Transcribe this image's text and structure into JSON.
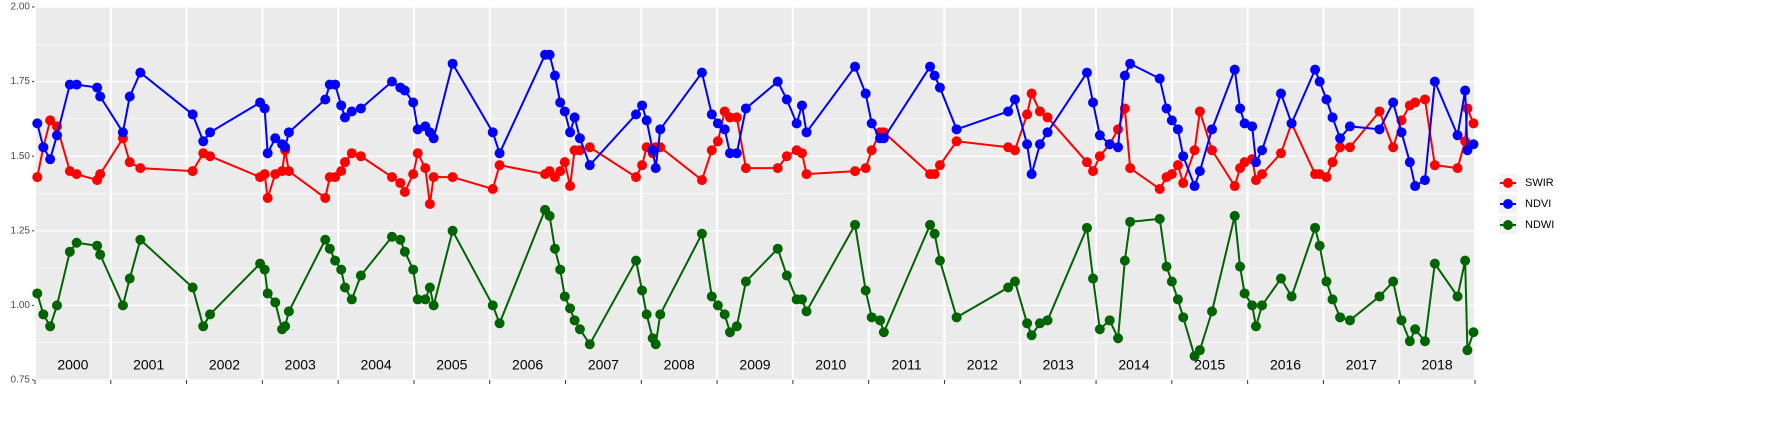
{
  "chart_data": {
    "type": "line",
    "x": [
      2000.03,
      2000.11,
      2000.2,
      2000.29,
      2000.46,
      2000.55,
      2000.82,
      2000.86,
      2001.16,
      2001.25,
      2001.39,
      2002.08,
      2002.22,
      2002.31,
      2002.97,
      2003.03,
      2003.07,
      2003.17,
      2003.26,
      2003.3,
      2003.35,
      2003.83,
      2003.89,
      2003.96,
      2004.04,
      2004.09,
      2004.18,
      2004.3,
      2004.71,
      2004.82,
      2004.88,
      2004.99,
      2005.05,
      2005.15,
      2005.21,
      2005.26,
      2005.51,
      2006.04,
      2006.13,
      2006.73,
      2006.79,
      2006.86,
      2006.93,
      2006.99,
      2007.06,
      2007.12,
      2007.19,
      2007.32,
      2007.93,
      2008.01,
      2008.07,
      2008.15,
      2008.19,
      2008.25,
      2008.8,
      2008.93,
      2009.01,
      2009.1,
      2009.17,
      2009.26,
      2009.38,
      2009.8,
      2009.92,
      2010.05,
      2010.12,
      2010.18,
      2010.82,
      2010.96,
      2011.04,
      2011.15,
      2011.2,
      2011.81,
      2011.87,
      2011.94,
      2012.16,
      2012.84,
      2012.93,
      2013.09,
      2013.15,
      2013.26,
      2013.36,
      2013.88,
      2013.96,
      2014.05,
      2014.18,
      2014.29,
      2014.38,
      2014.45,
      2014.84,
      2014.93,
      2015,
      2015.08,
      2015.15,
      2015.3,
      2015.37,
      2015.53,
      2015.83,
      2015.9,
      2015.96,
      2016.06,
      2016.11,
      2016.19,
      2016.44,
      2016.58,
      2016.89,
      2016.95,
      2017.04,
      2017.12,
      2017.22,
      2017.35,
      2017.74,
      2017.92,
      2018.03,
      2018.14,
      2018.21,
      2018.34,
      2018.47,
      2018.77,
      2018.87,
      2018.9,
      2018.98
    ],
    "series": [
      {
        "name": "SWIR",
        "color": "#ff0000",
        "values": [
          1.43,
          1.53,
          1.62,
          1.6,
          1.45,
          1.44,
          1.42,
          1.44,
          1.56,
          1.48,
          1.46,
          1.45,
          1.51,
          1.5,
          1.43,
          1.44,
          1.36,
          1.44,
          1.45,
          1.52,
          1.45,
          1.36,
          1.43,
          1.43,
          1.45,
          1.48,
          1.51,
          1.5,
          1.43,
          1.41,
          1.38,
          1.44,
          1.51,
          1.46,
          1.34,
          1.43,
          1.43,
          1.39,
          1.47,
          1.44,
          1.45,
          1.43,
          1.45,
          1.48,
          1.4,
          1.52,
          1.52,
          1.53,
          1.43,
          1.47,
          1.53,
          1.51,
          1.53,
          1.53,
          1.42,
          1.52,
          1.55,
          1.65,
          1.63,
          1.63,
          1.46,
          1.46,
          1.5,
          1.52,
          1.51,
          1.44,
          1.45,
          1.46,
          1.52,
          1.58,
          1.58,
          1.44,
          1.44,
          1.47,
          1.55,
          1.53,
          1.52,
          1.64,
          1.71,
          1.65,
          1.63,
          1.48,
          1.45,
          1.5,
          1.54,
          1.59,
          1.66,
          1.46,
          1.39,
          1.43,
          1.44,
          1.47,
          1.41,
          1.52,
          1.65,
          1.52,
          1.4,
          1.46,
          1.48,
          1.49,
          1.42,
          1.44,
          1.51,
          1.61,
          1.44,
          1.44,
          1.43,
          1.48,
          1.53,
          1.53,
          1.65,
          1.53,
          1.62,
          1.67,
          1.68,
          1.69,
          1.47,
          1.46,
          1.55,
          1.66,
          1.61
        ]
      },
      {
        "name": "NDVI",
        "color": "#0000ff",
        "values": [
          1.61,
          1.53,
          1.49,
          1.57,
          1.74,
          1.74,
          1.73,
          1.7,
          1.58,
          1.7,
          1.78,
          1.64,
          1.55,
          1.58,
          1.68,
          1.66,
          1.51,
          1.56,
          1.54,
          1.53,
          1.58,
          1.69,
          1.74,
          1.74,
          1.67,
          1.63,
          1.65,
          1.66,
          1.75,
          1.73,
          1.72,
          1.68,
          1.59,
          1.6,
          1.58,
          1.56,
          1.81,
          1.58,
          1.51,
          1.84,
          1.84,
          1.77,
          1.68,
          1.65,
          1.58,
          1.63,
          1.56,
          1.47,
          1.64,
          1.67,
          1.62,
          1.52,
          1.46,
          1.59,
          1.78,
          1.64,
          1.61,
          1.59,
          1.51,
          1.51,
          1.66,
          1.75,
          1.69,
          1.61,
          1.67,
          1.58,
          1.8,
          1.71,
          1.61,
          1.56,
          1.56,
          1.8,
          1.77,
          1.73,
          1.59,
          1.65,
          1.69,
          1.54,
          1.44,
          1.54,
          1.58,
          1.78,
          1.68,
          1.57,
          1.54,
          1.53,
          1.77,
          1.81,
          1.76,
          1.66,
          1.62,
          1.59,
          1.5,
          1.4,
          1.45,
          1.59,
          1.79,
          1.66,
          1.61,
          1.6,
          1.48,
          1.52,
          1.71,
          1.61,
          1.79,
          1.75,
          1.69,
          1.63,
          1.56,
          1.6,
          1.59,
          1.68,
          1.58,
          1.48,
          1.4,
          1.42,
          1.75,
          1.57,
          1.72,
          1.52,
          1.54
        ]
      },
      {
        "name": "NDWI",
        "color": "#006400",
        "values": [
          1.04,
          0.97,
          0.93,
          1.0,
          1.18,
          1.21,
          1.2,
          1.17,
          1.0,
          1.09,
          1.22,
          1.06,
          0.93,
          0.97,
          1.14,
          1.12,
          1.04,
          1.01,
          0.92,
          0.93,
          0.98,
          1.22,
          1.19,
          1.15,
          1.12,
          1.06,
          1.02,
          1.1,
          1.23,
          1.22,
          1.18,
          1.12,
          1.02,
          1.02,
          1.06,
          1.0,
          1.25,
          1.0,
          0.94,
          1.32,
          1.3,
          1.19,
          1.12,
          1.03,
          0.99,
          0.95,
          0.92,
          0.87,
          1.15,
          1.05,
          0.97,
          0.89,
          0.87,
          0.97,
          1.24,
          1.03,
          1.0,
          0.97,
          0.91,
          0.93,
          1.08,
          1.19,
          1.1,
          1.02,
          1.02,
          0.98,
          1.27,
          1.05,
          0.96,
          0.95,
          0.91,
          1.27,
          1.24,
          1.15,
          0.96,
          1.06,
          1.08,
          0.94,
          0.9,
          0.94,
          0.95,
          1.26,
          1.09,
          0.92,
          0.95,
          0.89,
          1.15,
          1.28,
          1.29,
          1.13,
          1.08,
          1.02,
          0.96,
          0.83,
          0.85,
          0.98,
          1.3,
          1.13,
          1.04,
          1.0,
          0.93,
          1.0,
          1.09,
          1.03,
          1.26,
          1.2,
          1.08,
          1.02,
          0.96,
          0.95,
          1.03,
          1.08,
          0.95,
          0.88,
          0.92,
          0.88,
          1.14,
          1.03,
          1.15,
          0.85,
          0.91
        ]
      }
    ],
    "xlim": [
      2000,
      2019
    ],
    "xticks": [
      2000,
      2001,
      2002,
      2003,
      2004,
      2005,
      2006,
      2007,
      2008,
      2009,
      2010,
      2011,
      2012,
      2013,
      2014,
      2015,
      2016,
      2017,
      2018,
      2019
    ],
    "year_labels": [
      "2000",
      "2001",
      "2002",
      "2003",
      "2004",
      "2005",
      "2006",
      "2007",
      "2008",
      "2009",
      "2010",
      "2011",
      "2012",
      "2013",
      "2014",
      "2015",
      "2016",
      "2017",
      "2018"
    ],
    "ylim": [
      0.75,
      2
    ],
    "yticks": [
      0.75,
      {
        "value": 1,
        "label": "1.00"
      },
      1.25,
      {
        "value": 1.5,
        "label": "1.50"
      },
      1.75,
      {
        "value": 2,
        "label": "2.00"
      }
    ],
    "grid": true,
    "legend": "right"
  }
}
